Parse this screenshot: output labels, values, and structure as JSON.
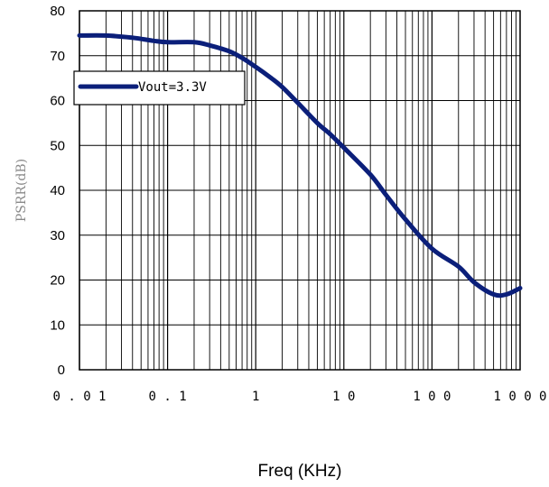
{
  "chart_data": {
    "type": "line",
    "x_scale": "log",
    "xlabel": "Freq (KHz)",
    "ylabel": "PSRR(dB)",
    "xlim": [
      0.01,
      1000
    ],
    "ylim": [
      0,
      80
    ],
    "x_tick_labels": [
      "0.01",
      "0.1",
      "1",
      "10",
      "100",
      "1000"
    ],
    "y_tick_labels": [
      "0",
      "10",
      "20",
      "30",
      "40",
      "50",
      "60",
      "70",
      "80"
    ],
    "grid": true,
    "legend_position": "top-left",
    "series": [
      {
        "name": "Vout=3.3V",
        "color": "#0b1f7a",
        "x": [
          0.01,
          0.02,
          0.04,
          0.07,
          0.1,
          0.2,
          0.3,
          0.5,
          0.7,
          1,
          1.5,
          2,
          3,
          5,
          7,
          10,
          20,
          30,
          50,
          100,
          200,
          300,
          500,
          700,
          1000
        ],
        "y": [
          74.5,
          74.5,
          74,
          73.3,
          73,
          73,
          72.3,
          71,
          69.5,
          67.5,
          65,
          63,
          59.5,
          55,
          52.5,
          49.5,
          43.5,
          39,
          33.5,
          27,
          23,
          19.5,
          16.8,
          16.8,
          18.2
        ]
      }
    ]
  }
}
